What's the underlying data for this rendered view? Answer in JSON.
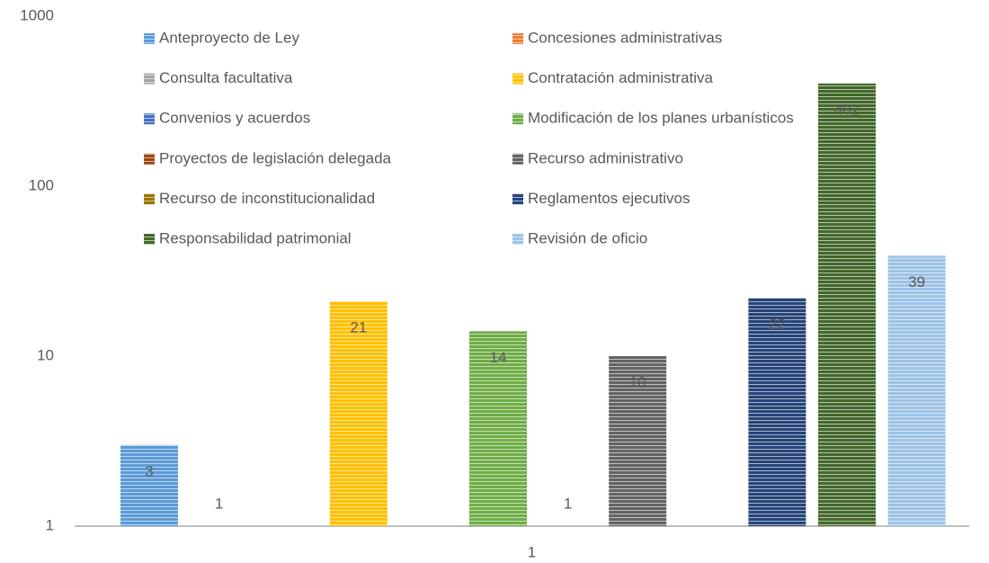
{
  "chart_data": {
    "type": "bar",
    "log_scale": true,
    "legend": "top",
    "categories": [
      "1"
    ],
    "ylim": [
      1,
      1000
    ],
    "yticks": [
      1,
      10,
      100,
      1000
    ],
    "series": [
      {
        "name": "Anteproyecto de Ley",
        "color": "#5b9bd5",
        "values": [
          3
        ]
      },
      {
        "name": "Concesiones administrativas",
        "color": "#ed7d31",
        "values": [
          1
        ]
      },
      {
        "name": "Consulta facultativa",
        "color": "#a5a5a5",
        "values": [
          null
        ]
      },
      {
        "name": "Contratación administrativa",
        "color": "#ffc000",
        "values": [
          21
        ]
      },
      {
        "name": "Convenios y acuerdos",
        "color": "#4472c4",
        "values": [
          null
        ]
      },
      {
        "name": "Modificación de los planes urbanísticos",
        "color": "#70ad47",
        "values": [
          14
        ]
      },
      {
        "name": "Proyectos de legislación delegada",
        "color": "#9e480e",
        "values": [
          1
        ]
      },
      {
        "name": "Recurso administrativo",
        "color": "#636363",
        "values": [
          10
        ]
      },
      {
        "name": "Recurso de inconstitucionalidad",
        "color": "#997300",
        "values": [
          null
        ]
      },
      {
        "name": "Reglamentos ejecutivos",
        "color": "#264478",
        "values": [
          22
        ]
      },
      {
        "name": "Responsabilidad patrimonial",
        "color": "#43682b",
        "values": [
          402
        ]
      },
      {
        "name": "Revisión de oficio",
        "color": "#9dc3e6",
        "values": [
          39
        ]
      }
    ]
  }
}
